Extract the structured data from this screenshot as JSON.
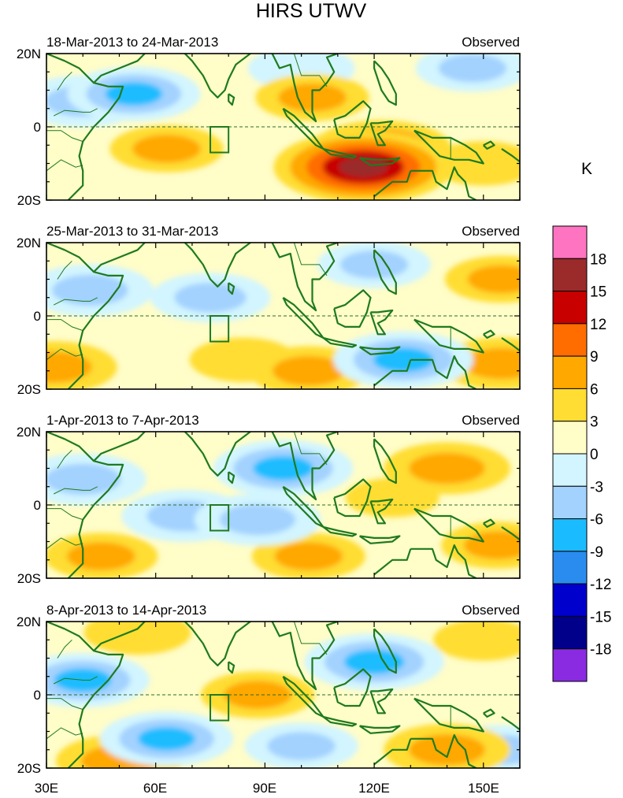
{
  "chart_data": {
    "type": "heatmap",
    "title": "HIRS UTWV",
    "units": "K",
    "x_axis": {
      "ticks": [
        30,
        60,
        90,
        120,
        150
      ],
      "tick_labels": [
        "30E",
        "60E",
        "90E",
        "120E",
        "150E"
      ],
      "range": [
        30,
        160
      ]
    },
    "y_axis": {
      "ticks": [
        20,
        0,
        -20
      ],
      "tick_labels": [
        "20N",
        "0",
        "20S"
      ],
      "range": [
        -20,
        20
      ]
    },
    "colorbar": {
      "levels": [
        -18,
        -15,
        -12,
        -9,
        -6,
        -3,
        0,
        3,
        6,
        9,
        12,
        15,
        18
      ],
      "labels": [
        "18",
        "15",
        "12",
        "9",
        "6",
        "3",
        "0",
        "-3",
        "-6",
        "-9",
        "-12",
        "-15",
        "-18"
      ],
      "colors_top_to_bottom": [
        "#ff74c0",
        "#9b2a2a",
        "#c80000",
        "#ff6d00",
        "#ffa800",
        "#ffdd33",
        "#fffdc8",
        "#d2f5ff",
        "#a3d2ff",
        "#1bbcff",
        "#2b8cf0",
        "#0000cc",
        "#00008a",
        "#8a2be2"
      ]
    },
    "panels": [
      {
        "period": "18-Mar-2013 to 24-Mar-2013",
        "label": "Observed",
        "anomalies": [
          {
            "lon": 54,
            "lat": 9,
            "value": -7
          },
          {
            "lon": 40,
            "lat": 7,
            "value": -6
          },
          {
            "lon": 100,
            "lat": 16,
            "value": -3
          },
          {
            "lon": 117,
            "lat": -11,
            "value": 14
          },
          {
            "lon": 122,
            "lat": -6,
            "value": 8
          },
          {
            "lon": 63,
            "lat": -6,
            "value": 4
          },
          {
            "lon": 103,
            "lat": 8,
            "value": 4
          },
          {
            "lon": 147,
            "lat": 16,
            "value": -4
          },
          {
            "lon": 150,
            "lat": -10,
            "value": 3
          }
        ]
      },
      {
        "period": "25-Mar-2013 to 31-Mar-2013",
        "label": "Observed",
        "anomalies": [
          {
            "lon": 42,
            "lat": 7,
            "value": -6
          },
          {
            "lon": 128,
            "lat": -12,
            "value": -8
          },
          {
            "lon": 75,
            "lat": 5,
            "value": -5
          },
          {
            "lon": 32,
            "lat": -14,
            "value": 6
          },
          {
            "lon": 102,
            "lat": -15,
            "value": 5
          },
          {
            "lon": 155,
            "lat": 10,
            "value": 4
          },
          {
            "lon": 155,
            "lat": -13,
            "value": 6
          },
          {
            "lon": 84,
            "lat": -12,
            "value": 3
          },
          {
            "lon": 120,
            "lat": 14,
            "value": -4
          }
        ]
      },
      {
        "period": "1-Apr-2013 to 7-Apr-2013",
        "label": "Observed",
        "anomalies": [
          {
            "lon": 95,
            "lat": 10,
            "value": -8
          },
          {
            "lon": 68,
            "lat": -3,
            "value": -6
          },
          {
            "lon": 88,
            "lat": -4,
            "value": -6
          },
          {
            "lon": 40,
            "lat": 7,
            "value": -6
          },
          {
            "lon": 140,
            "lat": 10,
            "value": 6
          },
          {
            "lon": 102,
            "lat": -14,
            "value": 4
          },
          {
            "lon": 45,
            "lat": -14,
            "value": 4
          },
          {
            "lon": 125,
            "lat": 2,
            "value": 1
          },
          {
            "lon": 154,
            "lat": -11,
            "value": 4
          }
        ]
      },
      {
        "period": "8-Apr-2013 to 14-Apr-2013",
        "label": "Observed",
        "anomalies": [
          {
            "lon": 120,
            "lat": 9,
            "value": -8
          },
          {
            "lon": 40,
            "lat": 4,
            "value": -7
          },
          {
            "lon": 63,
            "lat": -12,
            "value": -7
          },
          {
            "lon": 88,
            "lat": 0,
            "value": 4
          },
          {
            "lon": 140,
            "lat": -15,
            "value": 6
          },
          {
            "lon": 50,
            "lat": -18,
            "value": 6
          },
          {
            "lon": 100,
            "lat": -14,
            "value": -4
          },
          {
            "lon": 155,
            "lat": -15,
            "value": -5
          },
          {
            "lon": 55,
            "lat": 17,
            "value": 3
          },
          {
            "lon": 150,
            "lat": 15,
            "value": 2
          }
        ]
      }
    ],
    "region_box": {
      "lon": [
        75,
        80
      ],
      "lat": [
        -7,
        0
      ]
    }
  }
}
